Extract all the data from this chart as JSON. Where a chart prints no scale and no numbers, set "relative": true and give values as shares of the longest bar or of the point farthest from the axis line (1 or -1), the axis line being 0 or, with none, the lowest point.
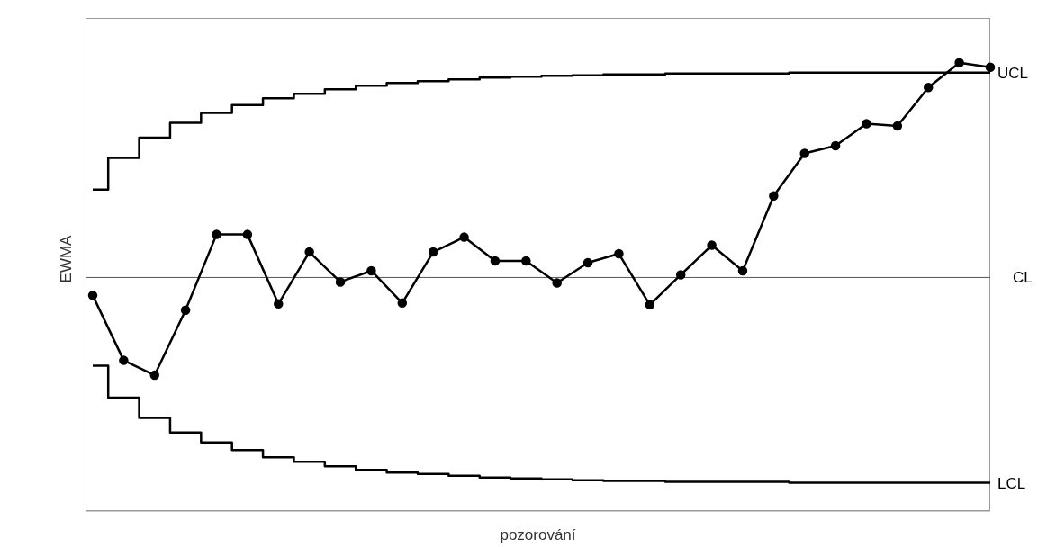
{
  "chart_data": {
    "type": "line",
    "relative": true,
    "xlabel": "pozorování",
    "ylabel": "EWMA",
    "categories": [
      null,
      null,
      null,
      null,
      null,
      null,
      null,
      null,
      null,
      null,
      null,
      null,
      null,
      null,
      null,
      null,
      null,
      null,
      null,
      null,
      null,
      null,
      null,
      null,
      null,
      null,
      null,
      null,
      null,
      null
    ],
    "series": [
      {
        "color": "#000000",
        "marker": "circle",
        "values": [
          0.481,
          0.336,
          0.303,
          0.448,
          0.617,
          0.617,
          0.462,
          0.578,
          0.511,
          0.536,
          0.464,
          0.578,
          0.611,
          0.558,
          0.558,
          0.509,
          0.554,
          0.574,
          0.46,
          0.527,
          0.593,
          0.536,
          0.703,
          0.798,
          0.815,
          0.864,
          0.859,
          0.945,
          1,
          0.99
        ]
      },
      {
        "type": "step",
        "name": "UCL",
        "color": "#000000",
        "marker": "none",
        "values": [
          0.717,
          0.788,
          0.833,
          0.866,
          0.888,
          0.906,
          0.921,
          0.931,
          0.941,
          0.949,
          0.955,
          0.959,
          0.963,
          0.967,
          0.969,
          0.971,
          0.972,
          0.974,
          0.974,
          0.976,
          0.976,
          0.976,
          0.976,
          0.978,
          0.978,
          0.978,
          0.978,
          0.978,
          0.978,
          0.978
        ]
      },
      {
        "type": "step",
        "name": "LCL",
        "color": "#000000",
        "marker": "none",
        "values": [
          0.324,
          0.253,
          0.208,
          0.175,
          0.153,
          0.136,
          0.12,
          0.11,
          0.1,
          0.092,
          0.086,
          0.083,
          0.079,
          0.075,
          0.073,
          0.071,
          0.069,
          0.067,
          0.067,
          0.065,
          0.065,
          0.065,
          0.065,
          0.063,
          0.063,
          0.063,
          0.063,
          0.063,
          0.063,
          0.063
        ]
      }
    ],
    "ref_lines": [
      {
        "axis": "y",
        "value": 0.521,
        "label": "CL",
        "color": "#555555"
      }
    ],
    "grid": false,
    "legend": false
  }
}
